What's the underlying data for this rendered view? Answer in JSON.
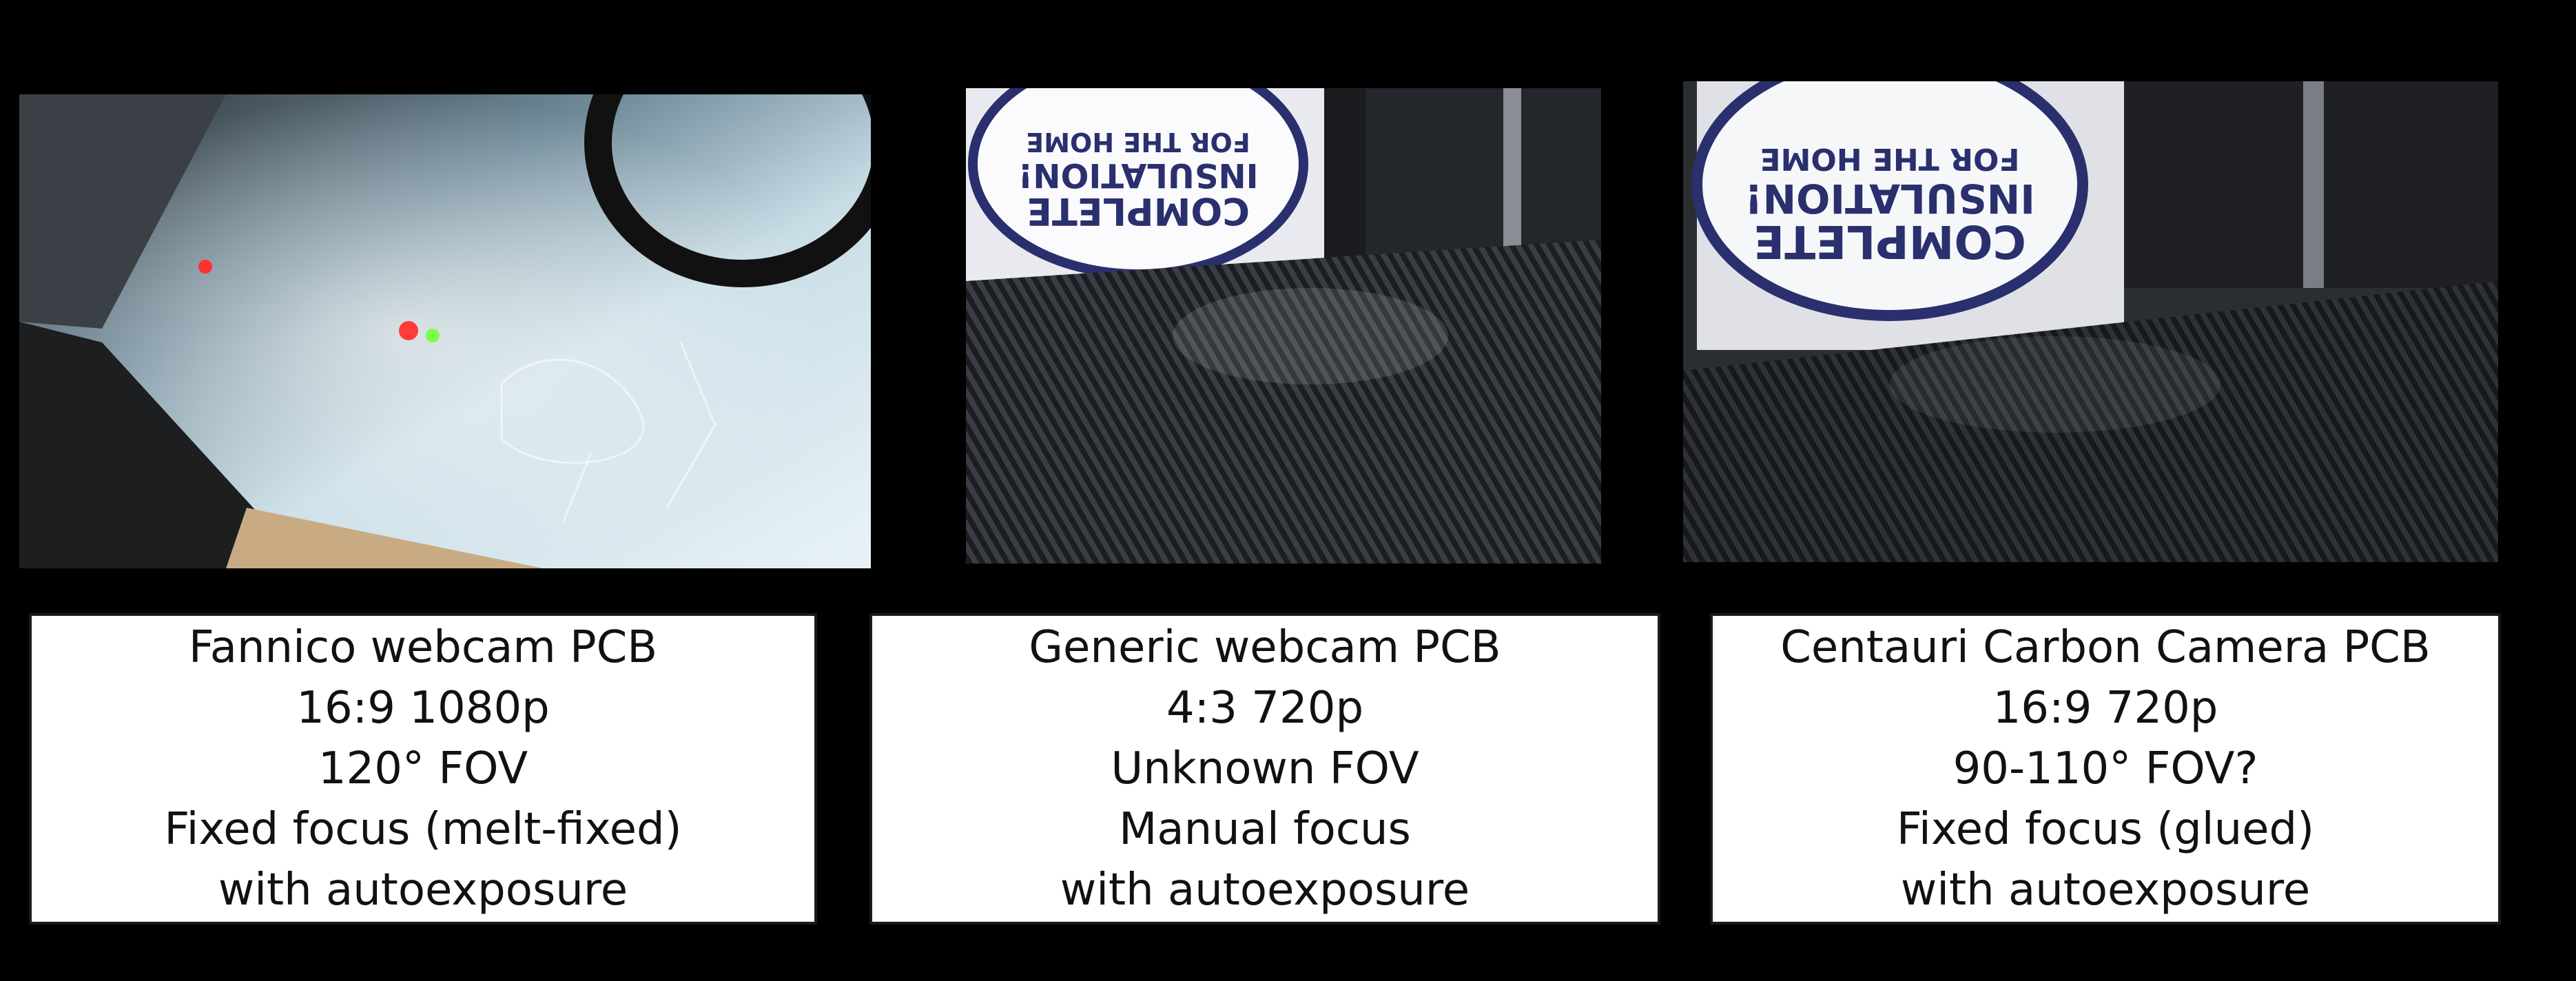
{
  "cards": [
    {
      "line1": "Fannico webcam PCB",
      "line2": "16:9 1080p",
      "line3": "120° FOV",
      "line4": "Fixed focus (melt-fixed)",
      "line5": "with autoexposure"
    },
    {
      "line1": "Generic webcam PCB",
      "line2": "4:3 720p",
      "line3": "Unknown FOV",
      "line4": "Manual focus",
      "line5": "with autoexposure"
    },
    {
      "line1": "Centauri Carbon Camera PCB",
      "line2": "16:9 720p",
      "line3": "90-110° FOV?",
      "line4": "Fixed focus (glued)",
      "line5": "with autoexposure"
    }
  ],
  "photos": {
    "sign_text": [
      "COMPLETE",
      "INSULATION!",
      "FOR THE HOME"
    ]
  },
  "colors": {
    "background": "#000000",
    "card": "#ffffff",
    "text": "#111111",
    "sign_ink": "#2a2f6e"
  }
}
